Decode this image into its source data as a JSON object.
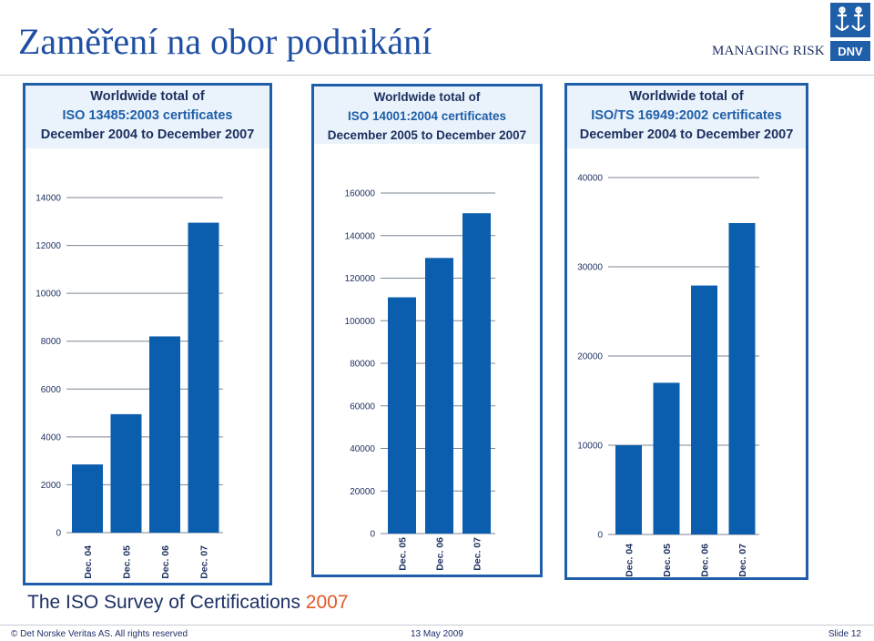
{
  "slide": {
    "title": "Zaměření na obor podnikání",
    "tagline": "MANAGING RISK",
    "logo_text": "DNV",
    "survey_title": "The ISO Survey of Certifications",
    "survey_year": "2007"
  },
  "footer": {
    "copyright": "© Det Norske Veritas AS. All rights reserved",
    "date": "13 May 2009",
    "slide_number": "Slide 12"
  },
  "colors": {
    "bar": "#0b5dad",
    "frame": "#1f5ea8",
    "header_bg": "#eaf3fb",
    "title_blue": "#1f4fa3",
    "accent_orange": "#e05a26"
  },
  "chart_data": [
    {
      "type": "bar",
      "title_lines": [
        "Worldwide total of",
        "ISO 13485:2003 certificates",
        "December 2004 to December 2007"
      ],
      "categories": [
        "Dec. 04",
        "Dec. 05",
        "Dec. 06",
        "Dec. 07"
      ],
      "values": [
        2850,
        4950,
        8200,
        12950
      ],
      "ylim": [
        0,
        14000
      ],
      "yticks": [
        0,
        2000,
        4000,
        6000,
        8000,
        10000,
        12000,
        14000
      ],
      "grid": true
    },
    {
      "type": "bar",
      "title_lines": [
        "Worldwide total of",
        "ISO 14001:2004 certificates",
        "December 2005 to December 2007"
      ],
      "categories": [
        "Dec. 05",
        "Dec. 06",
        "Dec. 07"
      ],
      "values": [
        111000,
        129500,
        150500
      ],
      "ylim": [
        0,
        160000
      ],
      "yticks": [
        0,
        20000,
        40000,
        60000,
        80000,
        100000,
        120000,
        140000,
        160000
      ],
      "grid": true
    },
    {
      "type": "bar",
      "title_lines": [
        "Worldwide total of",
        "ISO/TS 16949:2002 certificates",
        "December 2004 to December 2007"
      ],
      "categories": [
        "Dec. 04",
        "Dec. 05",
        "Dec. 06",
        "Dec. 07"
      ],
      "values": [
        10000,
        17000,
        27900,
        34900
      ],
      "ylim": [
        0,
        40000
      ],
      "yticks": [
        0,
        10000,
        20000,
        30000,
        40000
      ],
      "grid": true
    }
  ]
}
